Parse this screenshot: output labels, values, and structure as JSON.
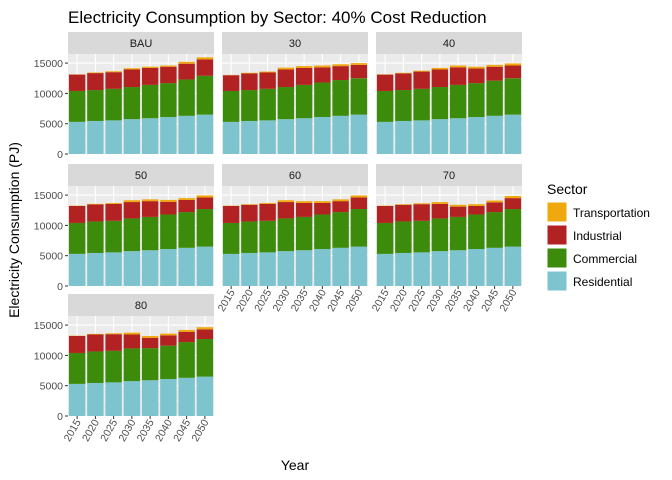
{
  "chart_data": {
    "type": "bar",
    "stacked": true,
    "faceted": true,
    "title": "Electricity Consumption by Sector: 40% Cost Reduction",
    "xlabel": "Year",
    "ylabel": "Electricity Consumption (PJ)",
    "ylim": [
      0,
      16500
    ],
    "yticks": [
      0,
      5000,
      10000,
      15000
    ],
    "categories": [
      "2015",
      "2020",
      "2025",
      "2030",
      "2035",
      "2040",
      "2045",
      "2050"
    ],
    "legend": {
      "title": "Sector",
      "placement": "right",
      "entries": [
        "Transportation",
        "Industrial",
        "Commercial",
        "Residential"
      ]
    },
    "colors": {
      "Residential": "#7ec4cf",
      "Commercial": "#3d8b0a",
      "Industrial": "#b22222",
      "Transportation": "#f0a80f",
      "strip_bg": "#d9d9d9",
      "panel_bg": "#ebebeb",
      "grid": "#ffffff"
    },
    "facets": [
      {
        "label": "BAU",
        "series": {
          "Residential": [
            5300,
            5450,
            5550,
            5750,
            5900,
            6100,
            6300,
            6500
          ],
          "Commercial": [
            5100,
            5100,
            5200,
            5300,
            5500,
            5600,
            6000,
            6400
          ],
          "Industrial": [
            2700,
            2800,
            2750,
            2900,
            2800,
            2700,
            2600,
            2700
          ],
          "Transportation": [
            50,
            100,
            150,
            200,
            200,
            200,
            300,
            350
          ]
        }
      },
      {
        "label": "30",
        "series": {
          "Residential": [
            5300,
            5450,
            5550,
            5750,
            5900,
            6100,
            6300,
            6500
          ],
          "Commercial": [
            5100,
            5100,
            5200,
            5300,
            5500,
            5700,
            5900,
            6000
          ],
          "Industrial": [
            2600,
            2750,
            2700,
            2900,
            2800,
            2500,
            2300,
            2200
          ],
          "Transportation": [
            50,
            100,
            150,
            300,
            300,
            300,
            300,
            300
          ]
        }
      },
      {
        "label": "40",
        "series": {
          "Residential": [
            5300,
            5450,
            5550,
            5750,
            5900,
            6100,
            6300,
            6500
          ],
          "Commercial": [
            5100,
            5100,
            5200,
            5300,
            5500,
            5600,
            5800,
            6000
          ],
          "Industrial": [
            2700,
            2750,
            2850,
            2900,
            2900,
            2400,
            2300,
            2100
          ],
          "Transportation": [
            50,
            100,
            150,
            250,
            300,
            300,
            300,
            350
          ]
        }
      },
      {
        "label": "50",
        "series": {
          "Residential": [
            5300,
            5450,
            5550,
            5750,
            5900,
            6100,
            6300,
            6500
          ],
          "Commercial": [
            5100,
            5200,
            5200,
            5400,
            5500,
            5700,
            5900,
            6200
          ],
          "Industrial": [
            2800,
            2800,
            2800,
            2700,
            2600,
            2100,
            2000,
            1900
          ],
          "Transportation": [
            50,
            100,
            150,
            300,
            300,
            300,
            300,
            350
          ]
        }
      },
      {
        "label": "60",
        "series": {
          "Residential": [
            5300,
            5450,
            5550,
            5750,
            5900,
            6100,
            6300,
            6500
          ],
          "Commercial": [
            5100,
            5200,
            5200,
            5400,
            5500,
            5700,
            5900,
            6200
          ],
          "Industrial": [
            2800,
            2750,
            2800,
            2700,
            2300,
            1900,
            1800,
            1900
          ],
          "Transportation": [
            50,
            100,
            150,
            300,
            300,
            300,
            300,
            350
          ]
        }
      },
      {
        "label": "70",
        "series": {
          "Residential": [
            5300,
            5450,
            5550,
            5750,
            5900,
            6100,
            6300,
            6500
          ],
          "Commercial": [
            5100,
            5200,
            5200,
            5400,
            5500,
            5700,
            5900,
            6200
          ],
          "Industrial": [
            2800,
            2750,
            2750,
            2400,
            1700,
            1400,
            1600,
            1800
          ],
          "Transportation": [
            50,
            100,
            150,
            300,
            300,
            300,
            300,
            350
          ]
        }
      },
      {
        "label": "80",
        "series": {
          "Residential": [
            5300,
            5450,
            5550,
            5750,
            5900,
            6100,
            6300,
            6500
          ],
          "Commercial": [
            5100,
            5200,
            5200,
            5400,
            5300,
            5500,
            5900,
            6200
          ],
          "Industrial": [
            2800,
            2800,
            2750,
            2300,
            1700,
            1700,
            1700,
            1600
          ],
          "Transportation": [
            50,
            100,
            150,
            300,
            300,
            300,
            300,
            350
          ]
        }
      }
    ]
  }
}
